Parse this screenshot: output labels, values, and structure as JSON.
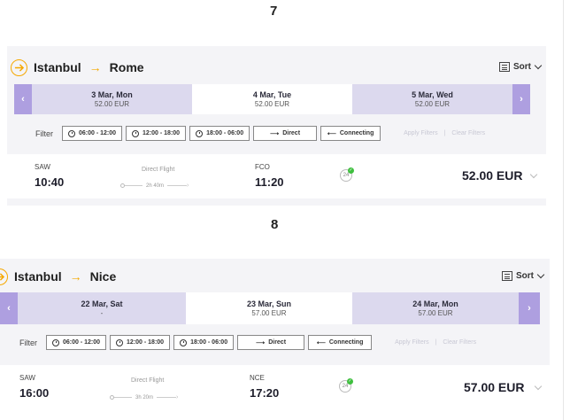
{
  "steps": [
    {
      "number": "7",
      "route": {
        "from": "Istanbul",
        "to": "Rome",
        "arrow": "→"
      },
      "sort_label": "Sort",
      "days": [
        {
          "date": "3 Mar, Mon",
          "price": "52.00 EUR"
        },
        {
          "date": "4 Mar, Tue",
          "price": "52.00 EUR",
          "active": true
        },
        {
          "date": "5 Mar, Wed",
          "price": "52.00 EUR"
        }
      ],
      "nav": {
        "prev": "‹",
        "next": "›"
      },
      "filter": {
        "label": "Filter",
        "chips": [
          "06:00 - 12:00",
          "12:00 - 18:00",
          "18:00 - 06:00",
          "Direct",
          "Connecting"
        ],
        "apply": "Apply Filters",
        "clear": "Clear Filters",
        "separator": "|"
      },
      "flight": {
        "dep_code": "SAW",
        "dep_time": "10:40",
        "type": "Direct Flight",
        "duration": "2h 40m",
        "arr_code": "FCO",
        "arr_time": "11:20",
        "price": "52.00 EUR"
      }
    },
    {
      "number": "8",
      "route": {
        "from": "Istanbul",
        "to": "Nice",
        "arrow": "→"
      },
      "sort_label": "Sort",
      "days": [
        {
          "date": "22 Mar, Sat",
          "price": "-"
        },
        {
          "date": "23 Mar, Sun",
          "price": "57.00 EUR",
          "active": true
        },
        {
          "date": "24 Mar, Mon",
          "price": "57.00 EUR"
        }
      ],
      "nav": {
        "prev": "‹",
        "next": "›"
      },
      "filter": {
        "label": "Filter",
        "chips": [
          "06:00 - 12:00",
          "12:00 - 18:00",
          "18:00 - 06:00",
          "Direct",
          "Connecting"
        ],
        "apply": "Apply Filters",
        "clear": "Clear Filters",
        "separator": "|"
      },
      "flight": {
        "dep_code": "SAW",
        "dep_time": "16:00",
        "type": "Direct Flight",
        "duration": "3h 20m",
        "arr_code": "NCE",
        "arr_time": "17:20",
        "price": "57.00 EUR"
      }
    }
  ],
  "badge_text": "24",
  "colors": {
    "accent": "#f5a800",
    "day_bg": "#dcd9ee",
    "nav_bg": "#ae9fe0",
    "panel_bg": "#f4f4f7"
  }
}
